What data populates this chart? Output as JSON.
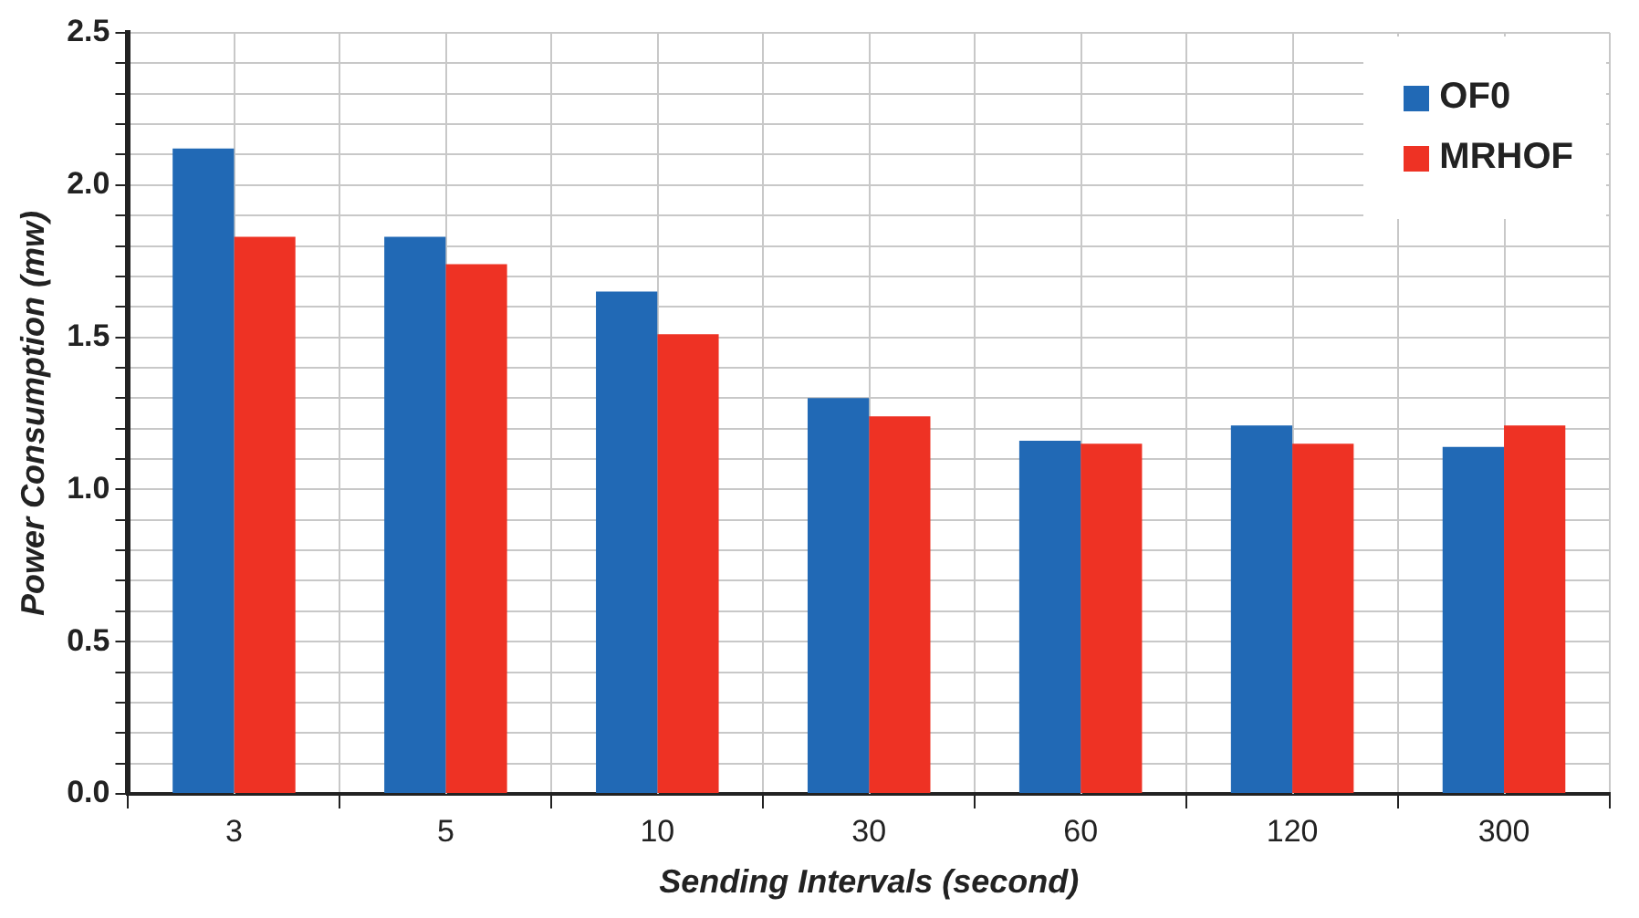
{
  "chart_data": {
    "type": "bar",
    "xlabel": "Sending Intervals (second)",
    "ylabel": "Power Consumption (mw)",
    "categories": [
      "3",
      "5",
      "10",
      "30",
      "60",
      "120",
      "300"
    ],
    "series": [
      {
        "name": "OF0",
        "color": "#2169b5",
        "values": [
          2.12,
          1.83,
          1.65,
          1.3,
          1.16,
          1.21,
          1.14
        ]
      },
      {
        "name": "MRHOF",
        "color": "#ee3224",
        "values": [
          1.83,
          1.74,
          1.51,
          1.24,
          1.15,
          1.15,
          1.21
        ]
      }
    ],
    "ylim": [
      0,
      2.5
    ],
    "yticks": [
      {
        "value": 0,
        "label": "0.0"
      },
      {
        "value": 0.1,
        "label": null
      },
      {
        "value": 0.2,
        "label": null
      },
      {
        "value": 0.3,
        "label": null
      },
      {
        "value": 0.4,
        "label": null
      },
      {
        "value": 0.5,
        "label": "0.5"
      },
      {
        "value": 0.6,
        "label": null
      },
      {
        "value": 0.7,
        "label": null
      },
      {
        "value": 0.8,
        "label": null
      },
      {
        "value": 0.9,
        "label": null
      },
      {
        "value": 1,
        "label": "1.0"
      },
      {
        "value": 1.1,
        "label": null
      },
      {
        "value": 1.2,
        "label": null
      },
      {
        "value": 1.3,
        "label": null
      },
      {
        "value": 1.4,
        "label": null
      },
      {
        "value": 1.5,
        "label": "1.5"
      },
      {
        "value": 1.6,
        "label": null
      },
      {
        "value": 1.7,
        "label": null
      },
      {
        "value": 1.8,
        "label": null
      },
      {
        "value": 1.9,
        "label": null
      },
      {
        "value": 2,
        "label": "2.0"
      },
      {
        "value": 2.1,
        "label": null
      },
      {
        "value": 2.2,
        "label": null
      },
      {
        "value": 2.3,
        "label": null
      },
      {
        "value": 2.4,
        "label": null
      },
      {
        "value": 2.5,
        "label": "2.5"
      }
    ],
    "grid": true,
    "legend": "top right"
  }
}
